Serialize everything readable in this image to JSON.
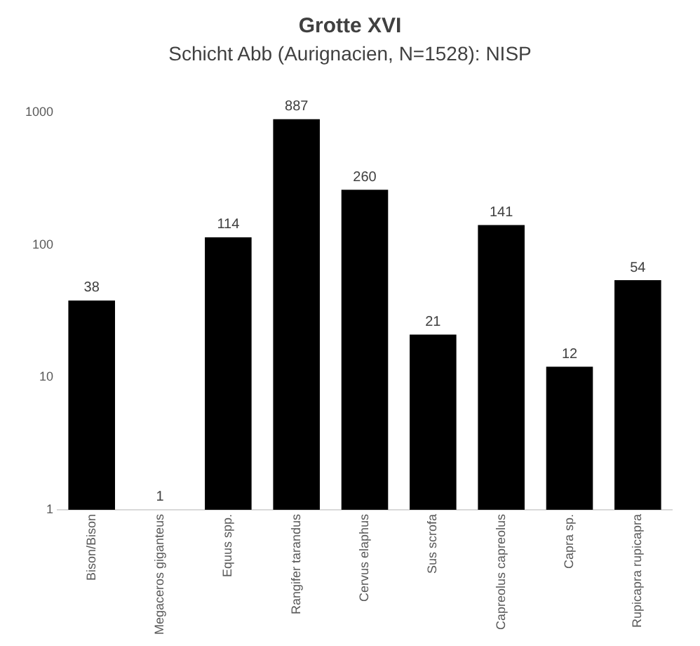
{
  "chart_data": {
    "type": "bar",
    "title": "Grotte XVI",
    "subtitle": "Schicht Abb (Aurignacien, N=1528): NISP",
    "categories": [
      "Bison/Bison",
      "Megaceros giganteus",
      "Equus spp.",
      "Rangifer tarandus",
      "Cervus elaphus",
      "Sus scrofa",
      "Capreolus capreolus",
      "Capra sp.",
      "Rupicapra rupicapra"
    ],
    "values": [
      38,
      1,
      114,
      887,
      260,
      21,
      141,
      12,
      54
    ],
    "color": "#000000",
    "log": true,
    "ylim": [
      1,
      1000
    ],
    "yticks": [
      1,
      10,
      100,
      1000
    ],
    "grid": false,
    "data_labels": true,
    "legend": false
  }
}
